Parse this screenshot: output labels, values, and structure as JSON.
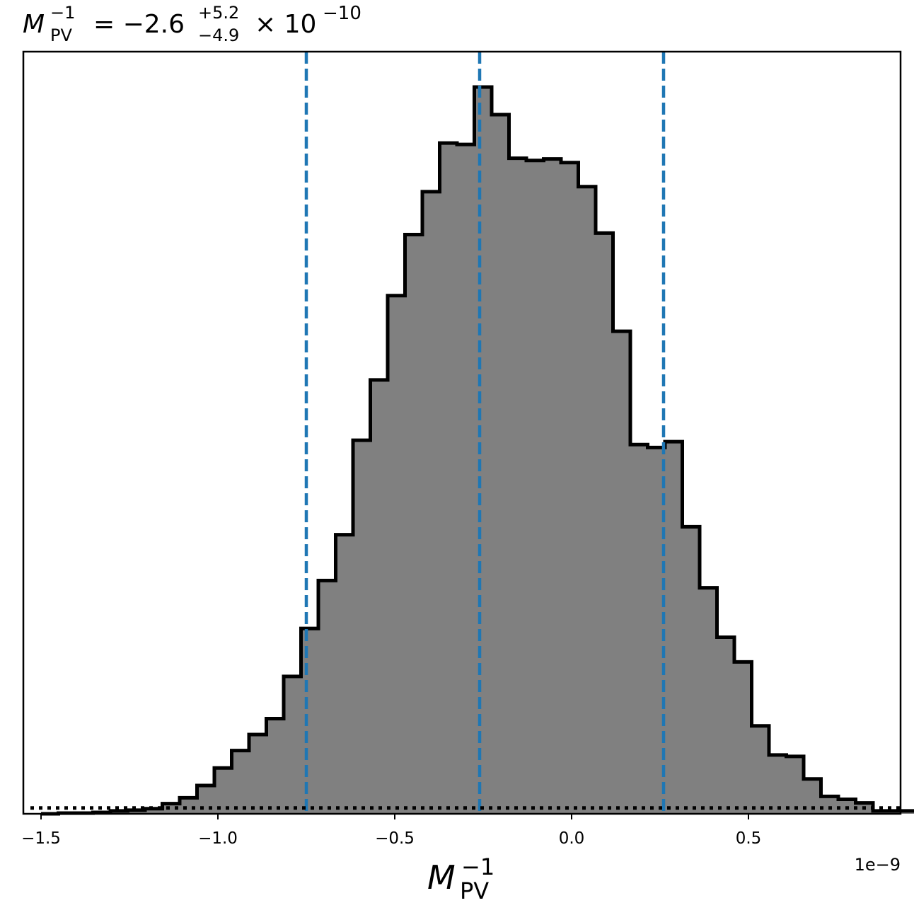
{
  "chart_data": {
    "type": "histogram",
    "title": {
      "symbol": "M",
      "subscript": "PV",
      "superscript": "−1",
      "equals": "= −2.6",
      "upper_err": "+5.2",
      "lower_err": "−4.9",
      "times": "× 10",
      "exponent": "−10"
    },
    "xlabel": {
      "symbol": "M",
      "subscript": "PV",
      "superscript": "−1"
    },
    "x_offset_label": "1e−9",
    "xlim": [
      -1.55,
      0.93
    ],
    "ylim": [
      0,
      1.0
    ],
    "x_ticks": [
      {
        "value": -1.5,
        "label": "−1.5"
      },
      {
        "value": -1.0,
        "label": "−1.0"
      },
      {
        "value": -0.5,
        "label": "−0.5"
      },
      {
        "value": 0.0,
        "label": "0.0"
      },
      {
        "value": 0.5,
        "label": "0.5"
      }
    ],
    "y_ticks_shown": false,
    "bin_start": -1.5,
    "bin_width": 0.049,
    "bin_heights": [
      0.0,
      0.001,
      0.001,
      0.002,
      0.004,
      0.005,
      0.007,
      0.014,
      0.022,
      0.039,
      0.063,
      0.087,
      0.109,
      0.131,
      0.189,
      0.255,
      0.321,
      0.384,
      0.514,
      0.597,
      0.713,
      0.797,
      0.856,
      0.923,
      0.921,
      1.0,
      0.962,
      0.902,
      0.899,
      0.901,
      0.896,
      0.863,
      0.799,
      0.664,
      0.508,
      0.504,
      0.512,
      0.395,
      0.311,
      0.243,
      0.209,
      0.121,
      0.081,
      0.079,
      0.048,
      0.024,
      0.02,
      0.015,
      0.004,
      0.004,
      0.004,
      0.005
    ],
    "histogram_style": {
      "fill": "#808080",
      "edge": "#000000",
      "histtype": "stepfilled"
    },
    "vertical_lines": [
      {
        "role": "lower_bound",
        "x": -0.75,
        "style": "dashed",
        "color": "#1f77b4"
      },
      {
        "role": "median",
        "x": -0.26,
        "style": "dashed",
        "color": "#1f77b4"
      },
      {
        "role": "upper_bound",
        "x": 0.26,
        "style": "dashed",
        "color": "#1f77b4"
      }
    ],
    "horizontal_lines": [
      {
        "role": "baseline",
        "y": 0.008,
        "style": "dotted",
        "color": "#000000"
      }
    ],
    "grid": false,
    "legend": "none"
  }
}
